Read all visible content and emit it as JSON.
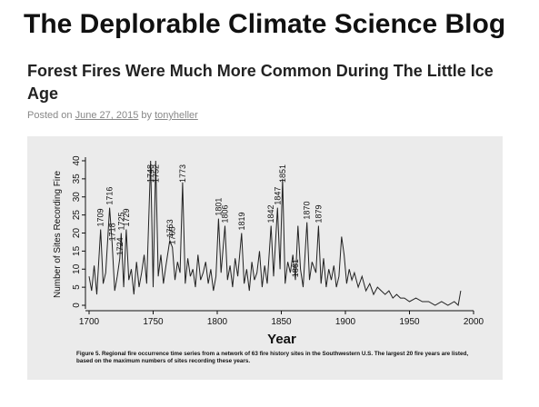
{
  "blog_title": "The Deplorable Climate Science Blog",
  "post": {
    "title": "Forest Fires Were Much More Common During The Little Ice Age",
    "posted_on": "Posted on",
    "date": "June 27, 2015",
    "by": "by",
    "author": "tonyheller"
  },
  "chart_data": {
    "type": "line",
    "x_label": "Year",
    "y_label": "Number of Sites Recording Fire",
    "caption": "Figure 5. Regional fire occurrence time series from a network of 63 fire history sites in the Southwestern U.S. The largest 20 fire years are listed, based on the maximum numbers of sites recording these years.",
    "x": [
      1700,
      1702,
      1704,
      1706,
      1709,
      1711,
      1713,
      1716,
      1718,
      1720,
      1722,
      1724,
      1725,
      1727,
      1729,
      1731,
      1733,
      1735,
      1737,
      1739,
      1741,
      1743,
      1745,
      1748,
      1750,
      1752,
      1754,
      1756,
      1758,
      1760,
      1763,
      1765,
      1767,
      1769,
      1771,
      1773,
      1775,
      1777,
      1779,
      1781,
      1783,
      1785,
      1787,
      1789,
      1791,
      1793,
      1795,
      1797,
      1799,
      1801,
      1803,
      1806,
      1808,
      1810,
      1812,
      1814,
      1816,
      1819,
      1821,
      1823,
      1825,
      1827,
      1829,
      1831,
      1833,
      1835,
      1837,
      1839,
      1842,
      1844,
      1847,
      1849,
      1851,
      1853,
      1855,
      1857,
      1859,
      1861,
      1863,
      1865,
      1867,
      1870,
      1872,
      1874,
      1877,
      1879,
      1881,
      1883,
      1885,
      1887,
      1889,
      1891,
      1893,
      1895,
      1897,
      1899,
      1901,
      1903,
      1905,
      1907,
      1910,
      1913,
      1916,
      1919,
      1922,
      1925,
      1928,
      1931,
      1934,
      1937,
      1940,
      1943,
      1946,
      1950,
      1955,
      1960,
      1965,
      1970,
      1975,
      1980,
      1985,
      1988,
      1990
    ],
    "values": [
      8,
      4,
      11,
      3,
      21,
      6,
      9,
      27,
      17,
      4,
      8,
      13,
      20,
      5,
      21,
      7,
      10,
      3,
      12,
      5,
      9,
      14,
      6,
      40,
      5,
      40,
      8,
      14,
      6,
      11,
      18,
      16,
      7,
      12,
      9,
      34,
      6,
      13,
      8,
      10,
      5,
      14,
      7,
      9,
      12,
      6,
      10,
      4,
      8,
      24,
      9,
      22,
      7,
      11,
      5,
      13,
      8,
      20,
      6,
      10,
      4,
      12,
      7,
      9,
      15,
      5,
      11,
      6,
      22,
      8,
      27,
      10,
      35,
      6,
      12,
      9,
      14,
      7,
      22,
      10,
      5,
      23,
      7,
      12,
      9,
      22,
      6,
      13,
      5,
      10,
      7,
      11,
      5,
      8,
      19,
      14,
      6,
      10,
      7,
      9,
      5,
      8,
      4,
      6,
      3,
      5,
      4,
      3,
      4,
      2,
      3,
      2,
      2,
      1,
      2,
      1,
      1,
      0,
      1,
      0,
      1,
      0,
      4
    ],
    "peak_years": [
      1709,
      1716,
      1718,
      1724,
      1725,
      1729,
      1748,
      1752,
      1763,
      1765,
      1773,
      1801,
      1806,
      1819,
      1842,
      1847,
      1851,
      1861,
      1870,
      1879
    ],
    "color": "#222222",
    "xlim": [
      1700,
      2000
    ],
    "xticks": [
      1700,
      1750,
      1800,
      1850,
      1900,
      1950,
      2000
    ],
    "ylim": [
      -1,
      41
    ],
    "yticks": [
      0,
      5,
      10,
      15,
      20,
      25,
      30,
      35,
      40
    ]
  }
}
